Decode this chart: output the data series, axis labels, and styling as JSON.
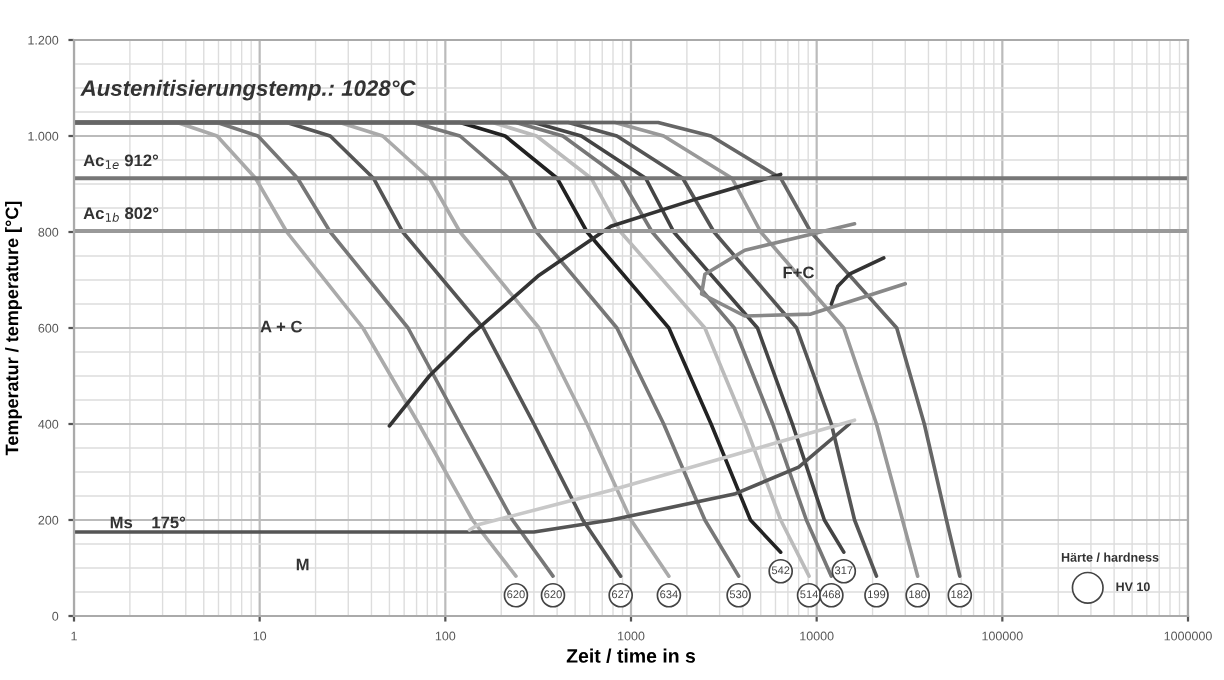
{
  "chart_data": {
    "type": "line",
    "xlabel": "Zeit / time in s",
    "ylabel": "Temperatur / temperature [°C]",
    "log": "x",
    "grid": true,
    "marker": "none",
    "line_style": "solid",
    "xlim": [
      1,
      1000000
    ],
    "xticks": [
      1,
      10,
      100,
      1000,
      10000,
      100000,
      1000000
    ],
    "ylim": [
      0,
      1200
    ],
    "yticks": [
      0,
      200,
      400,
      600,
      800,
      {
        "value": 1000,
        "label": "1.000"
      },
      {
        "value": 1200,
        "label": "1.200"
      }
    ],
    "series": [
      {
        "color": "#aaaaaa",
        "x": [
          1,
          3.6,
          5.9,
          9.5,
          14,
          36,
          72,
          140,
          240
        ],
        "values": [
          1028,
          1028,
          1000,
          912,
          800,
          600,
          400,
          200,
          83
        ]
      },
      {
        "color": "#777777",
        "x": [
          1,
          5.9,
          9.8,
          16,
          24,
          63,
          120,
          230,
          380
        ],
        "values": [
          1028,
          1028,
          1000,
          912,
          800,
          600,
          400,
          200,
          83
        ]
      },
      {
        "color": "#555555",
        "x": [
          1,
          14,
          24,
          41,
          59,
          160,
          300,
          550,
          880
        ],
        "values": [
          1028,
          1028,
          1000,
          912,
          800,
          600,
          400,
          200,
          83
        ]
      },
      {
        "color": "#aaaaaa",
        "x": [
          1,
          27,
          46,
          82,
          120,
          320,
          580,
          1000,
          1600
        ],
        "values": [
          1028,
          1028,
          1000,
          912,
          800,
          600,
          400,
          200,
          83
        ]
      },
      {
        "color": "#777777",
        "x": [
          1,
          67,
          120,
          220,
          310,
          840,
          1500,
          2500,
          3800
        ],
        "values": [
          1028,
          1028,
          1000,
          912,
          800,
          600,
          400,
          200,
          83
        ]
      },
      {
        "color": "#222222",
        "x": [
          1,
          120,
          210,
          400,
          580,
          1600,
          2700,
          4400,
          6400
        ],
        "values": [
          1028,
          1028,
          1000,
          912,
          800,
          600,
          400,
          200,
          133
        ]
      },
      {
        "color": "#bbbbbb",
        "x": [
          1,
          180,
          310,
          610,
          880,
          2500,
          4100,
          6400,
          9100
        ],
        "values": [
          1028,
          1028,
          1000,
          912,
          800,
          600,
          400,
          200,
          83
        ]
      },
      {
        "color": "#777777",
        "x": [
          1,
          240,
          430,
          880,
          1300,
          3600,
          5800,
          8800,
          12000
        ],
        "values": [
          1028,
          1028,
          1000,
          912,
          800,
          600,
          400,
          200,
          83
        ]
      },
      {
        "color": "#444444",
        "x": [
          1,
          300,
          540,
          1200,
          1700,
          4800,
          7400,
          11000,
          14000
        ],
        "values": [
          1028,
          1028,
          1000,
          912,
          800,
          600,
          400,
          200,
          133
        ]
      },
      {
        "color": "#555555",
        "x": [
          1,
          460,
          840,
          1900,
          2800,
          7800,
          12000,
          16000,
          21000
        ],
        "values": [
          1028,
          1028,
          1000,
          912,
          800,
          600,
          400,
          200,
          83
        ]
      },
      {
        "color": "#999999",
        "x": [
          1,
          820,
          1500,
          3500,
          5000,
          14000,
          21000,
          29000,
          35000
        ],
        "values": [
          1028,
          1028,
          1000,
          912,
          800,
          600,
          400,
          200,
          83
        ]
      },
      {
        "color": "#666666",
        "x": [
          1,
          1400,
          2700,
          6400,
          9300,
          27000,
          38000,
          50000,
          59000
        ],
        "values": [
          1028,
          1028,
          1000,
          912,
          800,
          600,
          400,
          200,
          83
        ]
      },
      {
        "color": "#555555",
        "x": [
          1,
          300,
          780,
          3600,
          8000,
          15000
        ],
        "values": [
          175,
          175,
          200,
          254,
          310,
          400
        ]
      },
      {
        "color": "#c8c8c8",
        "x": [
          135,
          150,
          780,
          3700,
          16000
        ],
        "values": [
          179,
          190,
          262,
          337,
          408
        ]
      },
      {
        "color": "#333333",
        "x": [
          50,
          82,
          135,
          320,
          780,
          2300,
          6400
        ],
        "values": [
          396,
          500,
          583,
          710,
          812,
          870,
          920
        ]
      },
      {
        "color": "#888888",
        "x": [
          16000,
          4100,
          2500,
          2400,
          4100,
          9300,
          30000
        ],
        "values": [
          817,
          762,
          712,
          671,
          625,
          629,
          692
        ]
      },
      {
        "color": "#333333",
        "x": [
          12000,
          13000,
          15000,
          23000
        ],
        "values": [
          650,
          687,
          712,
          746
        ]
      }
    ],
    "ref_lines": [
      {
        "axis": "y",
        "value": 912,
        "label": "Ac$_{1e}$ 912°",
        "color": "#777777"
      },
      {
        "axis": "y",
        "value": 802,
        "label": "Ac$_{1b}$ 802°",
        "color": "#999999"
      }
    ],
    "annotations": [
      "Austenitisierungstemp.: 1028°C",
      "A + C",
      "F+C",
      "Ms    175°",
      "M",
      "Härte / hardness",
      "HV 10",
      {
        "text": "620",
        "x": 240,
        "y": 83
      },
      {
        "text": "620",
        "x": 380,
        "y": 83
      },
      {
        "text": "627",
        "x": 880,
        "y": 83
      },
      {
        "text": "634",
        "x": 1600,
        "y": 83
      },
      {
        "text": "530",
        "x": 3800,
        "y": 83
      },
      {
        "text": "542",
        "x": 6400,
        "y": 133
      },
      {
        "text": "514",
        "x": 9100,
        "y": 83
      },
      {
        "text": "468",
        "x": 12000,
        "y": 83
      },
      {
        "text": "317",
        "x": 14000,
        "y": 133
      },
      {
        "text": "199",
        "x": 21000,
        "y": 83
      },
      {
        "text": "180",
        "x": 35000,
        "y": 83
      },
      {
        "text": "182",
        "x": 59000,
        "y": 83
      }
    ]
  }
}
